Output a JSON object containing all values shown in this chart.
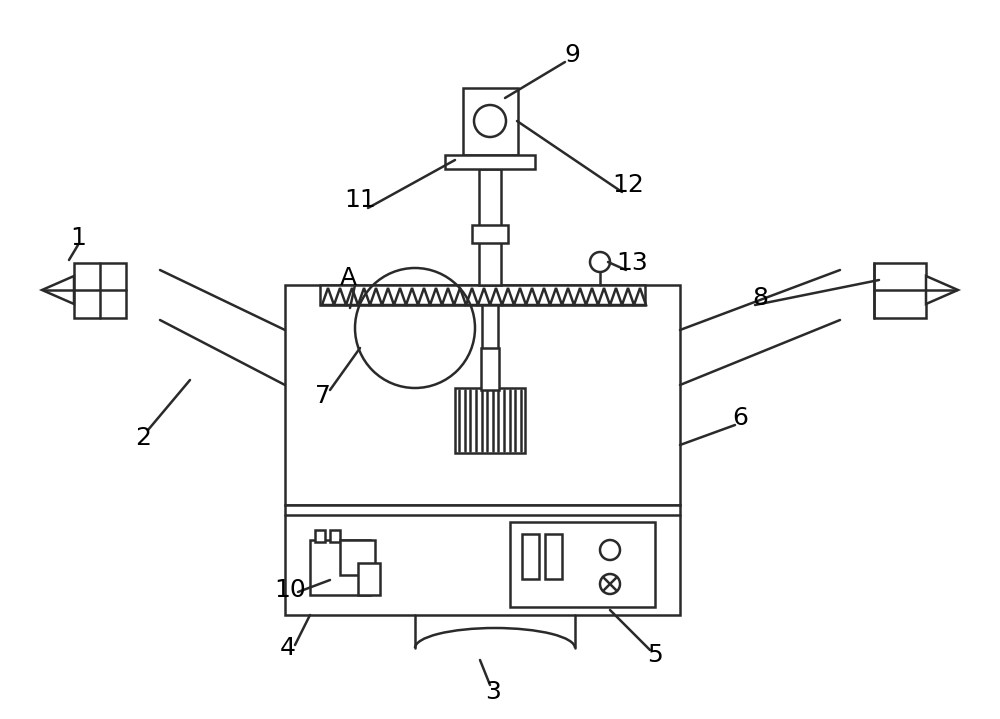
{
  "bg_color": "#ffffff",
  "line_color": "#2a2a2a",
  "line_width": 1.8,
  "fig_width": 10.0,
  "fig_height": 7.19
}
